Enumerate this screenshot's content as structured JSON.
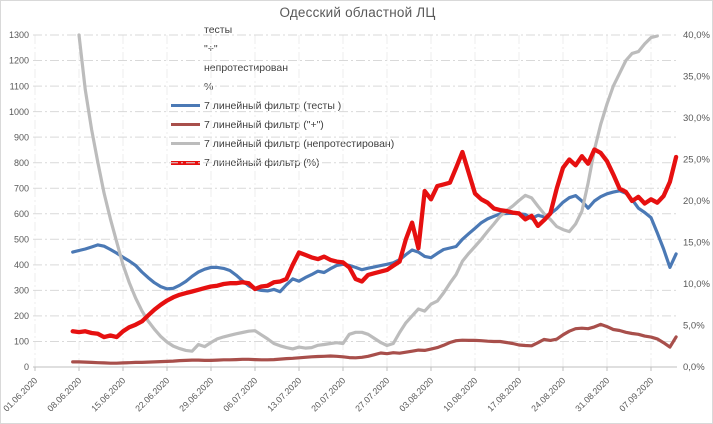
{
  "chart_data": {
    "type": "line",
    "title": "Одесский областной ЛЦ",
    "legend_position": "top-center-stacked",
    "grid": true,
    "x_axis": {
      "labels": [
        "01.06.2020",
        "08.06.2020",
        "15.06.2020",
        "22.06.2020",
        "29.06.2020",
        "06.07.2020",
        "13.07.2020",
        "20.07.2020",
        "27.07.2020",
        "03.08.2020",
        "10.08.2020",
        "17.08.2020",
        "24.08.2020",
        "31.08.2020",
        "07.09.2020"
      ],
      "label_rotation": -45,
      "data_start_date": "07.06.2020",
      "data_end_date": "11.09.2020",
      "points_are_daily": true,
      "start_day_offset_from_first_label": 6
    },
    "left_axis": {
      "min": 0,
      "max": 1300,
      "step": 100,
      "labels": [
        "0",
        "100",
        "200",
        "300",
        "400",
        "500",
        "600",
        "700",
        "800",
        "900",
        "1000",
        "1100",
        "1200",
        "1300"
      ]
    },
    "right_axis": {
      "min_pct": 0,
      "max_pct": 40,
      "step_pct": 5,
      "labels": [
        "0,0%",
        "5,0%",
        "10,0%",
        "15,0%",
        "20,0%",
        "25,0%",
        "30,0%",
        "35,0%",
        "40,0%"
      ]
    },
    "legend_items": [
      {
        "label": "тесты",
        "color": null
      },
      {
        "label": "\"+\"",
        "color": null
      },
      {
        "label": "непротестирован",
        "color": null
      },
      {
        "label": "%",
        "color": null
      },
      {
        "label": "7 линейный фильтр (тесты )",
        "color": "#4b79b5"
      },
      {
        "label": "7 линейный фильтр (\"+\")",
        "color": "#a84f4b"
      },
      {
        "label": "7 линейный фильтр (непротестирован)",
        "color": "#bcbcbc"
      },
      {
        "label": "7 линейный фильтр (%)",
        "color": "#e61010"
      }
    ],
    "series": [
      {
        "key": "tests-trend",
        "name": "7 линейный фильтр (тесты )",
        "axis": "left",
        "color": "#4b79b5",
        "width": 3.2,
        "values": [
          450,
          456,
          462,
          470,
          478,
          473,
          460,
          446,
          430,
          415,
          398,
          372,
          350,
          330,
          315,
          306,
          308,
          320,
          335,
          355,
          372,
          383,
          390,
          390,
          386,
          378,
          360,
          338,
          318,
          306,
          300,
          298,
          304,
          295,
          322,
          345,
          336,
          350,
          362,
          375,
          370,
          385,
          398,
          402,
          398,
          390,
          381,
          387,
          392,
          397,
          402,
          408,
          420,
          440,
          458,
          450,
          433,
          428,
          445,
          460,
          466,
          472,
          500,
          522,
          543,
          565,
          580,
          590,
          600,
          601,
          602,
          600,
          597,
          581,
          594,
          588,
          600,
          620,
          645,
          663,
          671,
          650,
          622,
          650,
          667,
          678,
          685,
          690,
          680,
          656,
          622,
          605,
          585,
          525,
          462,
          390,
          443
        ]
      },
      {
        "key": "positive-trend",
        "name": "7 линейный фильтр (\"+\")",
        "axis": "left",
        "color": "#a84f4b",
        "width": 3.2,
        "values": [
          20,
          20,
          19,
          18,
          17,
          16,
          15,
          15,
          16,
          17,
          18,
          18,
          19,
          20,
          21,
          22,
          23,
          25,
          26,
          27,
          27,
          26,
          26,
          27,
          28,
          28,
          29,
          30,
          30,
          29,
          28,
          28,
          29,
          31,
          33,
          34,
          36,
          38,
          40,
          41,
          42,
          43,
          42,
          40,
          37,
          36,
          38,
          42,
          48,
          55,
          52,
          56,
          54,
          58,
          62,
          66,
          65,
          70,
          76,
          85,
          96,
          103,
          105,
          104,
          104,
          103,
          101,
          100,
          100,
          96,
          92,
          86,
          84,
          83,
          95,
          108,
          104,
          109,
          126,
          140,
          150,
          152,
          150,
          157,
          167,
          158,
          147,
          143,
          136,
          131,
          128,
          121,
          117,
          110,
          95,
          78,
          118
        ]
      },
      {
        "key": "untested-trend",
        "name": "7 линейный фильтр (непротестирован)",
        "axis": "left",
        "color": "#bcbcbc",
        "width": 3.2,
        "values": [
          null,
          1300,
          1085,
          930,
          800,
          680,
          580,
          490,
          400,
          330,
          270,
          220,
          180,
          148,
          120,
          98,
          82,
          72,
          65,
          62,
          88,
          80,
          96,
          110,
          118,
          124,
          130,
          135,
          140,
          142,
          126,
          110,
          92,
          83,
          76,
          71,
          78,
          74,
          76,
          85,
          88,
          92,
          95,
          92,
          128,
          136,
          136,
          128,
          112,
          96,
          84,
          92,
          135,
          173,
          200,
          227,
          219,
          246,
          258,
          290,
          328,
          362,
          414,
          445,
          472,
          500,
          531,
          560,
          590,
          612,
          630,
          652,
          672,
          662,
          630,
          600,
          578,
          550,
          538,
          530,
          560,
          610,
          720,
          850,
          950,
          1030,
          1100,
          1150,
          1200,
          1228,
          1235,
          1265,
          1290,
          1296,
          null,
          null,
          null
        ]
      },
      {
        "key": "percent-trend",
        "name": "7 линейный фильтр (%)",
        "axis": "right",
        "color": "#e61010",
        "width": 4.3,
        "values_unit": "percent",
        "values": [
          4.3,
          4.2,
          4.3,
          4.1,
          4.0,
          3.6,
          3.8,
          3.6,
          4.3,
          4.8,
          5.1,
          5.5,
          6.2,
          6.9,
          7.5,
          8.0,
          8.4,
          8.7,
          8.9,
          9.1,
          9.3,
          9.5,
          9.7,
          9.8,
          10.0,
          10.1,
          10.1,
          10.2,
          10.1,
          9.4,
          9.7,
          9.8,
          10.2,
          10.3,
          10.6,
          12.3,
          13.8,
          13.5,
          13.2,
          13.0,
          13.3,
          12.9,
          12.7,
          12.6,
          12.0,
          10.6,
          10.3,
          11.1,
          11.3,
          11.5,
          11.7,
          12.2,
          12.7,
          15.4,
          17.4,
          14.3,
          21.2,
          20.2,
          21.8,
          22.0,
          22.2,
          24.0,
          25.9,
          23.4,
          20.9,
          20.2,
          19.8,
          19.1,
          18.9,
          18.8,
          18.6,
          18.5,
          17.8,
          18.2,
          17.0,
          17.7,
          18.5,
          21.5,
          24.0,
          25.0,
          24.3,
          25.4,
          24.5,
          26.2,
          25.8,
          24.8,
          23.2,
          21.5,
          21.1,
          20.0,
          20.5,
          19.7,
          20.2,
          19.8,
          20.6,
          22.3,
          25.3
        ]
      }
    ],
    "colors": {
      "gridline": "#d9d9d9",
      "vertical_gridline": "#ececec",
      "axis_line": "#bfbfbf",
      "axis_text": "#595959",
      "title_text": "#595959"
    }
  }
}
